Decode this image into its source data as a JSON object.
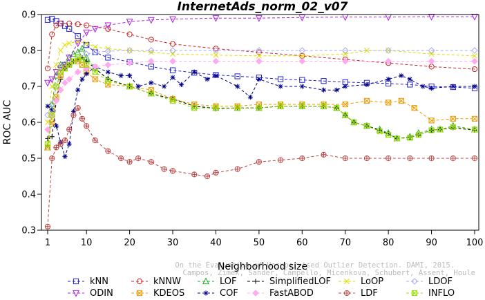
{
  "chart_data": {
    "type": "line",
    "title": "InternetAds_norm_02_v07",
    "xlabel": "Neighborhood size",
    "ylabel": "ROC AUC",
    "xlim": [
      1,
      100
    ],
    "ylim": [
      0.3,
      0.9
    ],
    "xticks": [
      1,
      10,
      20,
      30,
      40,
      50,
      60,
      70,
      80,
      90,
      100
    ],
    "yticks": [
      0.3,
      0.4,
      0.5,
      0.6,
      0.7,
      0.8,
      0.9
    ],
    "legend_position": "bottom",
    "watermark": [
      "Campos, Zimek, Sander, Campello, Micenkova, Schubert, Assent, Houle",
      "On the Evaluation of Unsupervised Outlier Detection. DAMI, 2015."
    ],
    "series": [
      {
        "name": "kNN",
        "color": "#2222cc",
        "marker": "square",
        "x": [
          1,
          2,
          3,
          4,
          5,
          6,
          8,
          10,
          12,
          15,
          20,
          25,
          30,
          35,
          40,
          45,
          50,
          55,
          60,
          65,
          70,
          75,
          80,
          85,
          90,
          95,
          100
        ],
        "y": [
          0.885,
          0.888,
          0.882,
          0.875,
          0.868,
          0.86,
          0.84,
          0.815,
          0.795,
          0.78,
          0.768,
          0.755,
          0.745,
          0.738,
          0.732,
          0.728,
          0.725,
          0.72,
          0.718,
          0.715,
          0.712,
          0.71,
          0.708,
          0.705,
          0.7,
          0.698,
          0.695
        ]
      },
      {
        "name": "kNNW",
        "color": "#cc2222",
        "marker": "circle",
        "x": [
          1,
          2,
          3,
          4,
          6,
          8,
          10,
          15,
          20,
          25,
          30,
          40,
          50,
          60,
          70,
          80,
          90,
          100
        ],
        "y": [
          0.75,
          0.845,
          0.87,
          0.875,
          0.875,
          0.873,
          0.87,
          0.86,
          0.845,
          0.83,
          0.818,
          0.805,
          0.795,
          0.785,
          0.775,
          0.765,
          0.755,
          0.748
        ]
      },
      {
        "name": "LOF",
        "color": "#22aa22",
        "marker": "triangle",
        "x": [
          1,
          2,
          3,
          4,
          5,
          6,
          7,
          8,
          9,
          10,
          12,
          15,
          20,
          25,
          30,
          35,
          40,
          45,
          50,
          55,
          60,
          65,
          68,
          70,
          72,
          75,
          78,
          80,
          82,
          85,
          87,
          90,
          92,
          95,
          100
        ],
        "y": [
          0.53,
          0.65,
          0.73,
          0.76,
          0.76,
          0.78,
          0.79,
          0.795,
          0.805,
          0.78,
          0.75,
          0.72,
          0.7,
          0.68,
          0.665,
          0.645,
          0.64,
          0.64,
          0.64,
          0.645,
          0.645,
          0.645,
          0.64,
          0.62,
          0.6,
          0.59,
          0.58,
          0.57,
          0.555,
          0.56,
          0.57,
          0.58,
          0.58,
          0.59,
          0.58
        ]
      },
      {
        "name": "SimplifiedLOF",
        "color": "#000000",
        "marker": "plus",
        "x": [
          1,
          2,
          3,
          4,
          5,
          6,
          7,
          8,
          9,
          10,
          12,
          15,
          20,
          25,
          30,
          35,
          40,
          45,
          50,
          55,
          60,
          65,
          68,
          70,
          72,
          75,
          78,
          80,
          82,
          85,
          87,
          90,
          92,
          95,
          100
        ],
        "y": [
          0.555,
          0.56,
          0.66,
          0.72,
          0.75,
          0.76,
          0.77,
          0.775,
          0.78,
          0.77,
          0.75,
          0.72,
          0.7,
          0.68,
          0.665,
          0.645,
          0.638,
          0.64,
          0.64,
          0.645,
          0.645,
          0.645,
          0.64,
          0.62,
          0.6,
          0.59,
          0.578,
          0.568,
          0.555,
          0.558,
          0.565,
          0.578,
          0.58,
          0.585,
          0.578
        ]
      },
      {
        "name": "LoOP",
        "color": "#dddd00",
        "marker": "cross",
        "x": [
          1,
          2,
          3,
          4,
          5,
          6,
          8,
          10,
          12,
          15,
          20,
          25,
          30,
          40,
          50,
          60,
          70,
          75,
          80,
          90,
          100
        ],
        "y": [
          0.6,
          0.7,
          0.76,
          0.8,
          0.815,
          0.82,
          0.825,
          0.82,
          0.81,
          0.805,
          0.8,
          0.795,
          0.79,
          0.787,
          0.785,
          0.785,
          0.79,
          0.8,
          0.8,
          0.79,
          0.785
        ]
      },
      {
        "name": "LDOF",
        "color": "#aaaaee",
        "marker": "diamond",
        "x": [
          1,
          2,
          3,
          4,
          5,
          6,
          8,
          10,
          12,
          15,
          20,
          25,
          30,
          40,
          50,
          60,
          70,
          80,
          90,
          100
        ],
        "y": [
          0.62,
          0.65,
          0.7,
          0.73,
          0.75,
          0.76,
          0.775,
          0.79,
          0.795,
          0.798,
          0.8,
          0.8,
          0.8,
          0.8,
          0.8,
          0.8,
          0.8,
          0.8,
          0.8,
          0.8
        ]
      },
      {
        "name": "ODIN",
        "color": "#aa22dd",
        "marker": "tri-down",
        "x": [
          1,
          2,
          3,
          4,
          5,
          6,
          8,
          10,
          12,
          15,
          20,
          25,
          30,
          40,
          50,
          60,
          70,
          80,
          90,
          100
        ],
        "y": [
          0.71,
          0.72,
          0.74,
          0.75,
          0.76,
          0.78,
          0.82,
          0.85,
          0.86,
          0.87,
          0.88,
          0.885,
          0.887,
          0.89,
          0.89,
          0.892,
          0.893,
          0.893,
          0.894,
          0.894
        ]
      },
      {
        "name": "KDEOS",
        "color": "#ee9900",
        "marker": "square-x",
        "x": [
          1,
          2,
          3,
          4,
          5,
          6,
          7,
          8,
          9,
          10,
          12,
          15,
          20,
          25,
          30,
          35,
          40,
          45,
          50,
          55,
          60,
          65,
          70,
          75,
          80,
          83,
          86,
          90,
          95,
          100
        ],
        "y": [
          0.53,
          0.6,
          0.67,
          0.73,
          0.75,
          0.76,
          0.77,
          0.77,
          0.76,
          0.74,
          0.72,
          0.705,
          0.7,
          0.69,
          0.665,
          0.65,
          0.645,
          0.645,
          0.65,
          0.65,
          0.65,
          0.65,
          0.65,
          0.66,
          0.655,
          0.66,
          0.64,
          0.605,
          0.61,
          0.61
        ]
      },
      {
        "name": "COF",
        "color": "#000088",
        "marker": "asterisk",
        "x": [
          1,
          2,
          3,
          4,
          5,
          6,
          7,
          8,
          9,
          10,
          12,
          15,
          18,
          20,
          22,
          25,
          28,
          30,
          32,
          35,
          38,
          40,
          45,
          48,
          50,
          55,
          60,
          65,
          68,
          70,
          75,
          80,
          83,
          85,
          88,
          90,
          95,
          100
        ],
        "y": [
          0.645,
          0.635,
          0.59,
          0.545,
          0.505,
          0.54,
          0.63,
          0.69,
          0.72,
          0.735,
          0.755,
          0.74,
          0.73,
          0.73,
          0.7,
          0.71,
          0.7,
          0.725,
          0.705,
          0.74,
          0.72,
          0.73,
          0.7,
          0.67,
          0.72,
          0.7,
          0.7,
          0.69,
          0.69,
          0.7,
          0.705,
          0.72,
          0.73,
          0.72,
          0.7,
          0.695,
          0.7,
          0.7
        ]
      },
      {
        "name": "FastABOD",
        "color": "#ffaaee",
        "marker": "diamond-filled",
        "x": [
          1,
          2,
          3,
          4,
          5,
          6,
          8,
          10,
          12,
          15,
          20,
          25,
          30,
          40,
          50,
          60,
          70,
          80,
          90,
          100
        ],
        "y": [
          0.58,
          0.62,
          0.66,
          0.69,
          0.71,
          0.72,
          0.74,
          0.75,
          0.755,
          0.76,
          0.765,
          0.77,
          0.77,
          0.77,
          0.77,
          0.77,
          0.77,
          0.77,
          0.77,
          0.77
        ]
      },
      {
        "name": "LDF",
        "color": "#bb4444",
        "marker": "circle-plus",
        "x": [
          1,
          2,
          3,
          4,
          5,
          6,
          7,
          8,
          9,
          10,
          12,
          15,
          18,
          20,
          22,
          25,
          28,
          30,
          35,
          38,
          40,
          45,
          50,
          55,
          60,
          65,
          70,
          75,
          80,
          85,
          90,
          95,
          100
        ],
        "y": [
          0.31,
          0.5,
          0.53,
          0.54,
          0.55,
          0.58,
          0.62,
          0.64,
          0.61,
          0.59,
          0.55,
          0.52,
          0.5,
          0.49,
          0.5,
          0.49,
          0.47,
          0.465,
          0.455,
          0.45,
          0.46,
          0.47,
          0.49,
          0.495,
          0.5,
          0.51,
          0.5,
          0.5,
          0.5,
          0.5,
          0.5,
          0.5,
          0.5
        ]
      },
      {
        "name": "INFLO",
        "color": "#99dd00",
        "marker": "square-x",
        "x": [
          1,
          2,
          3,
          4,
          5,
          6,
          7,
          8,
          9,
          10,
          12,
          15,
          20,
          25,
          30,
          35,
          40,
          45,
          50,
          55,
          60,
          65,
          68,
          70,
          72,
          75,
          78,
          80,
          82,
          85,
          87,
          90,
          92,
          95,
          100
        ],
        "y": [
          0.54,
          0.62,
          0.7,
          0.74,
          0.75,
          0.76,
          0.77,
          0.78,
          0.775,
          0.76,
          0.74,
          0.715,
          0.7,
          0.68,
          0.66,
          0.64,
          0.64,
          0.64,
          0.64,
          0.645,
          0.645,
          0.645,
          0.64,
          0.62,
          0.6,
          0.59,
          0.575,
          0.565,
          0.555,
          0.557,
          0.565,
          0.578,
          0.58,
          0.587,
          0.58
        ]
      }
    ]
  }
}
